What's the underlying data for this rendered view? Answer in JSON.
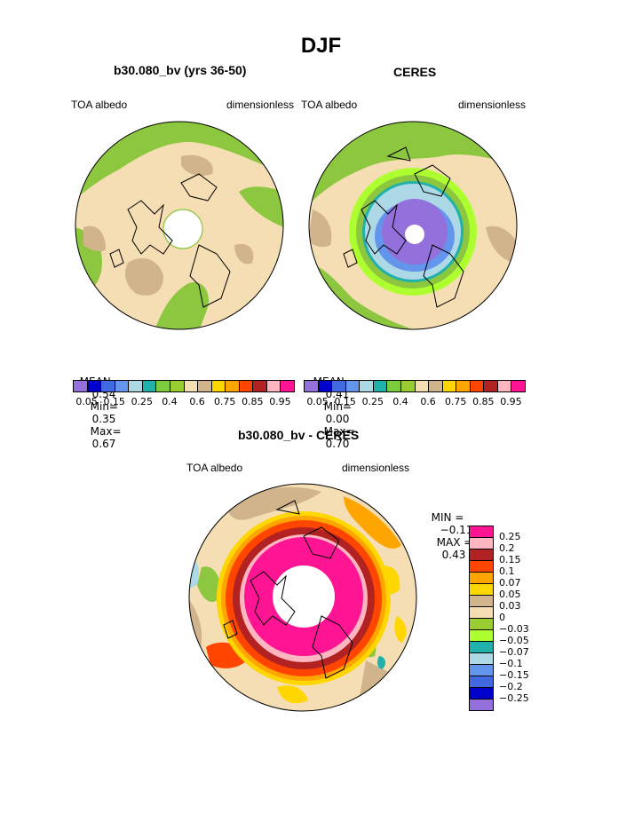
{
  "page": {
    "season": "DJF",
    "panels": [
      {
        "title": "b30.080_bv (yrs 36-50)",
        "left_label": "TOA albedo",
        "right_label": "dimensionless",
        "stats": {
          "mean_label": "MEAN=",
          "mean": "0.54",
          "min_label": "Min=",
          "min": "0.35",
          "max_label": "Max=",
          "max": "0.67"
        }
      },
      {
        "title": "CERES",
        "left_label": "TOA albedo",
        "right_label": "dimensionless",
        "stats": {
          "mean_label": "MEAN=",
          "mean": "0.41",
          "min_label": "Min=",
          "min": "0.00",
          "max_label": "Max=",
          "max": "0.70"
        }
      }
    ],
    "diff_panel": {
      "title": "b30.080_bv - CERES",
      "left_label": "TOA albedo",
      "right_label": "dimensionless",
      "minmax": {
        "min_label": "MIN =",
        "min": "−0.11",
        "max_label": "MAX =",
        "max": "0.43"
      }
    }
  },
  "legend": {
    "abs_colors": [
      "#9370DB",
      "#0000CD",
      "#4169E1",
      "#6495ED",
      "#ADD8E6",
      "#20B2AA",
      "#7CCD3E",
      "#9ACD32",
      "#F5DEB3",
      "#D2B48C",
      "#FFD700",
      "#FFA500",
      "#FF4500",
      "#B22222",
      "#FFB6C1",
      "#FF1493"
    ],
    "abs_labels": [
      "0.05",
      "0.15",
      "0.25",
      "0.4",
      "0.6",
      "0.75",
      "0.85",
      "0.95"
    ],
    "diff_colors": [
      "#FF1493",
      "#FFB6C1",
      "#B22222",
      "#FF4500",
      "#FFA500",
      "#FFD700",
      "#D2B48C",
      "#F5DEB3",
      "#9ACD32",
      "#ADFF2F",
      "#20B2AA",
      "#ADD8E6",
      "#6495ED",
      "#4169E1",
      "#0000CD",
      "#9370DB"
    ],
    "diff_labels": [
      "0.25",
      "0.2",
      "0.15",
      "0.1",
      "0.07",
      "0.05",
      "0.03",
      "0",
      "−0.03",
      "−0.05",
      "−0.07",
      "−0.1",
      "−0.15",
      "−0.2",
      "−0.25"
    ]
  },
  "map_colors": {
    "tan": "#F5DEB3",
    "brown": "#D2B48C",
    "green": "#8DC63F",
    "lightgreen": "#ADFF2F",
    "teal": "#20B2AA",
    "lightblue": "#ADD8E6",
    "blue": "#6495ED",
    "purple": "#9370DB",
    "pink": "#FF1493",
    "lightpink": "#FFB6C1",
    "darkred": "#B22222",
    "orangered": "#FF4500",
    "orange": "#FFA500",
    "gold": "#FFD700"
  }
}
